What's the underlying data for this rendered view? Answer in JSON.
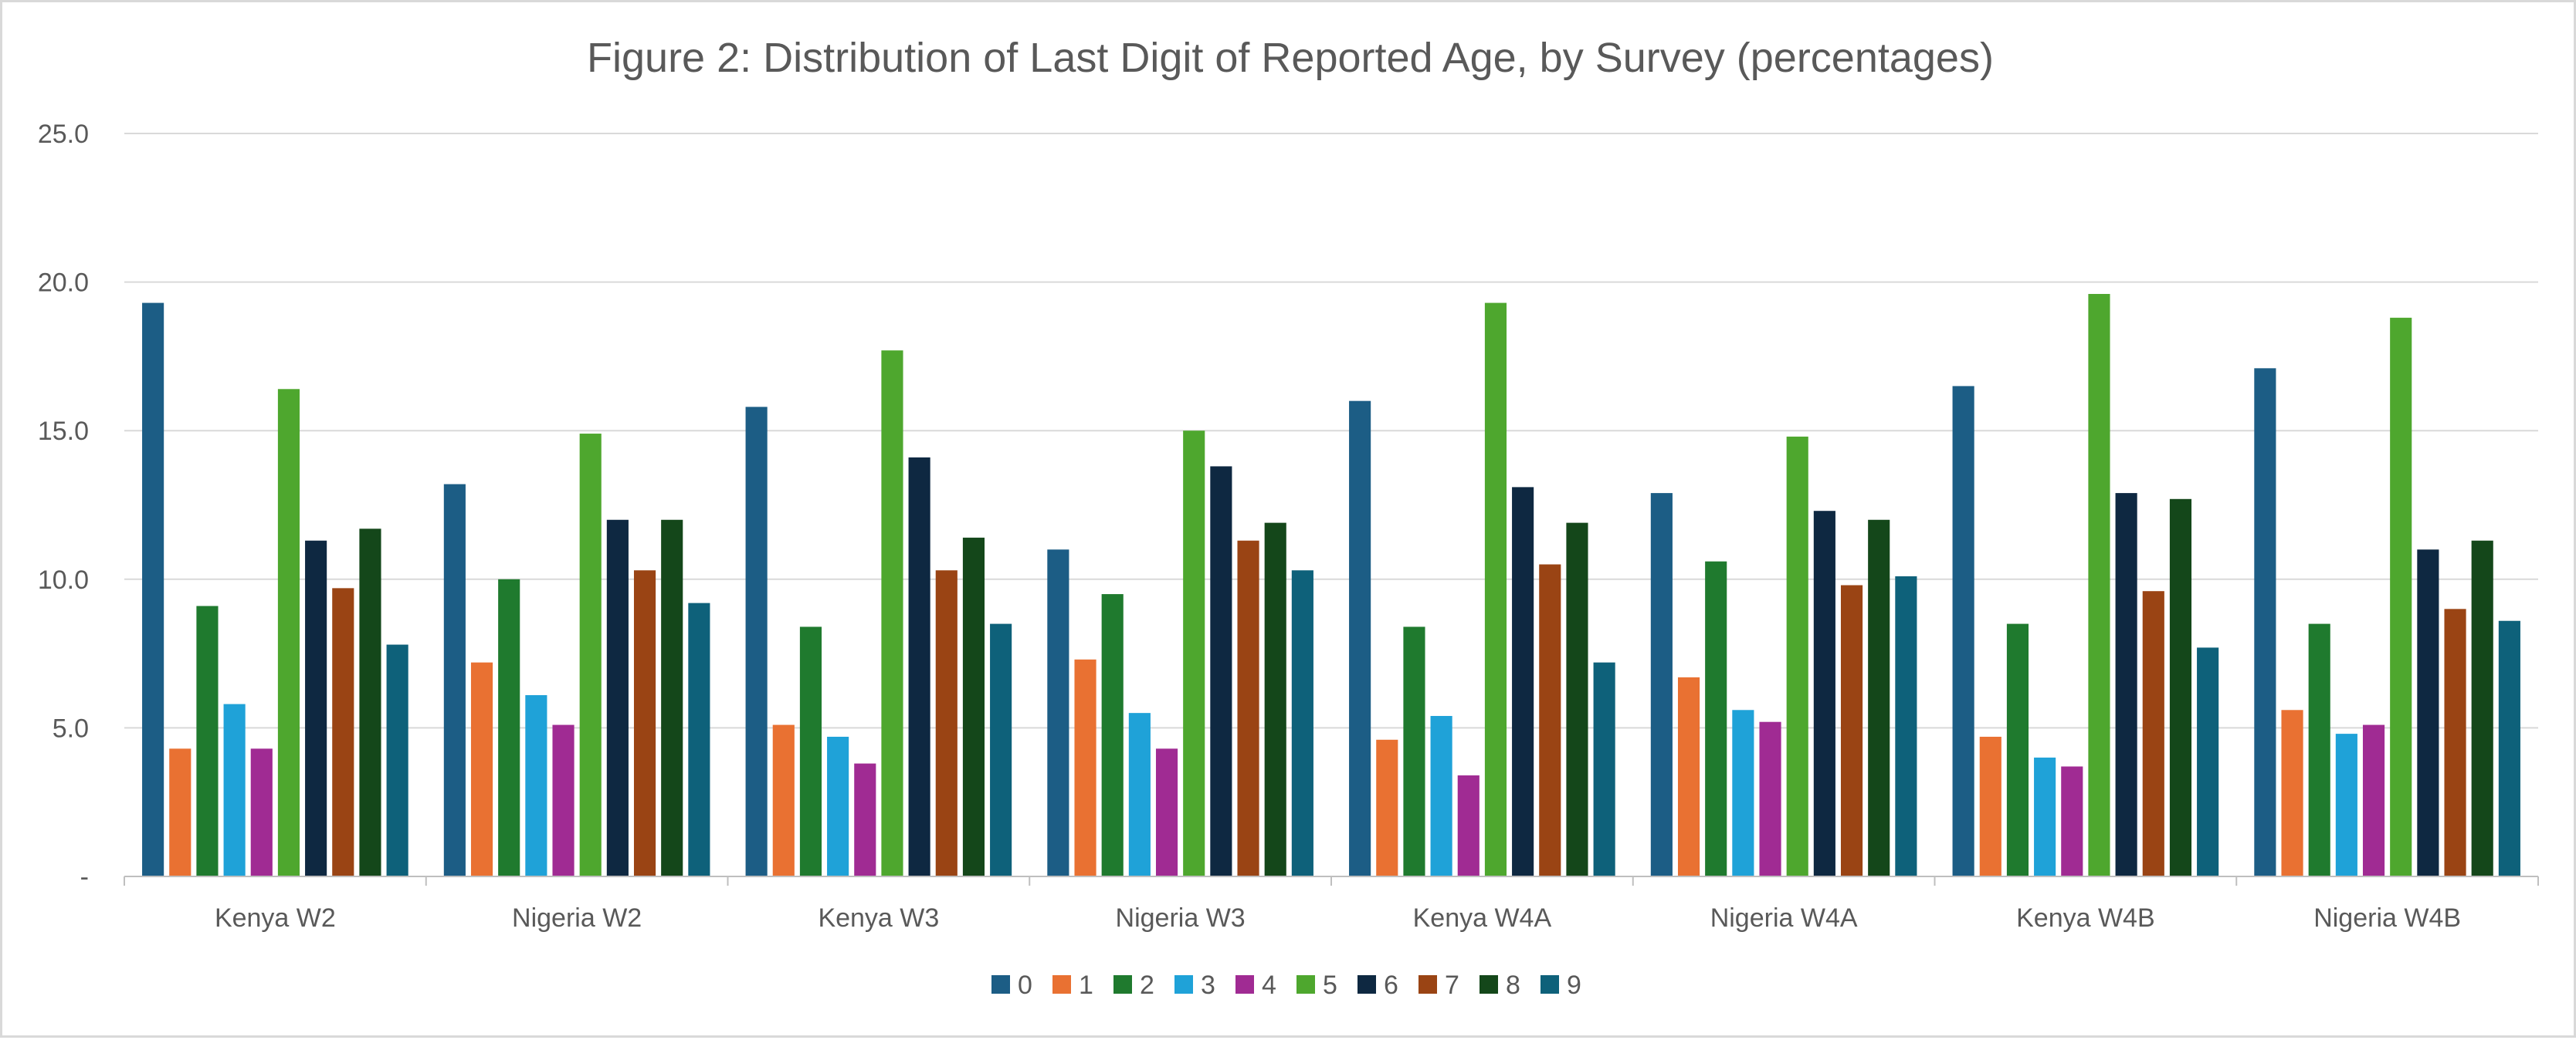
{
  "chart_data": {
    "type": "bar",
    "title": "Figure 2: Distribution of Last Digit of Reported Age, by Survey (percentages)",
    "xlabel": "",
    "ylabel": "",
    "ylim": [
      0,
      25
    ],
    "yticks": [
      {
        "value": 0,
        "label": "-"
      },
      {
        "value": 5,
        "label": "5.0"
      },
      {
        "value": 10,
        "label": "10.0"
      },
      {
        "value": 15,
        "label": "15.0"
      },
      {
        "value": 20,
        "label": "20.0"
      },
      {
        "value": 25,
        "label": "25.0"
      }
    ],
    "grid": true,
    "legend_position": "bottom",
    "categories": [
      "Kenya W2",
      "Nigeria W2",
      "Kenya W3",
      "Nigeria W3",
      "Kenya W4A",
      "Nigeria W4A",
      "Kenya W4B",
      "Nigeria W4B"
    ],
    "series": [
      {
        "name": "0",
        "color": "#1c5d85",
        "values": [
          19.3,
          13.2,
          15.8,
          11.0,
          16.0,
          12.9,
          16.5,
          17.1
        ]
      },
      {
        "name": "1",
        "color": "#e97132",
        "values": [
          4.3,
          7.2,
          5.1,
          7.3,
          4.6,
          6.7,
          4.7,
          5.6
        ]
      },
      {
        "name": "2",
        "color": "#1f7a2e",
        "values": [
          9.1,
          10.0,
          8.4,
          9.5,
          8.4,
          10.6,
          8.5,
          8.5
        ]
      },
      {
        "name": "3",
        "color": "#1fa2d8",
        "values": [
          5.8,
          6.1,
          4.7,
          5.5,
          5.4,
          5.6,
          4.0,
          4.8
        ]
      },
      {
        "name": "4",
        "color": "#a02b93",
        "values": [
          4.3,
          5.1,
          3.8,
          4.3,
          3.4,
          5.2,
          3.7,
          5.1
        ]
      },
      {
        "name": "5",
        "color": "#4ea72e",
        "values": [
          16.4,
          14.9,
          17.7,
          15.0,
          19.3,
          14.8,
          19.6,
          18.8
        ]
      },
      {
        "name": "6",
        "color": "#0e2841",
        "values": [
          11.3,
          12.0,
          14.1,
          13.8,
          13.1,
          12.3,
          12.9,
          11.0
        ]
      },
      {
        "name": "7",
        "color": "#9a4414",
        "values": [
          9.7,
          10.3,
          10.3,
          11.3,
          10.5,
          9.8,
          9.6,
          9.0
        ]
      },
      {
        "name": "8",
        "color": "#14471a",
        "values": [
          11.7,
          12.0,
          11.4,
          11.9,
          11.9,
          12.0,
          12.7,
          11.3
        ]
      },
      {
        "name": "9",
        "color": "#0e617a",
        "values": [
          7.8,
          9.2,
          8.5,
          10.3,
          7.2,
          10.1,
          7.7,
          8.6
        ]
      }
    ]
  }
}
